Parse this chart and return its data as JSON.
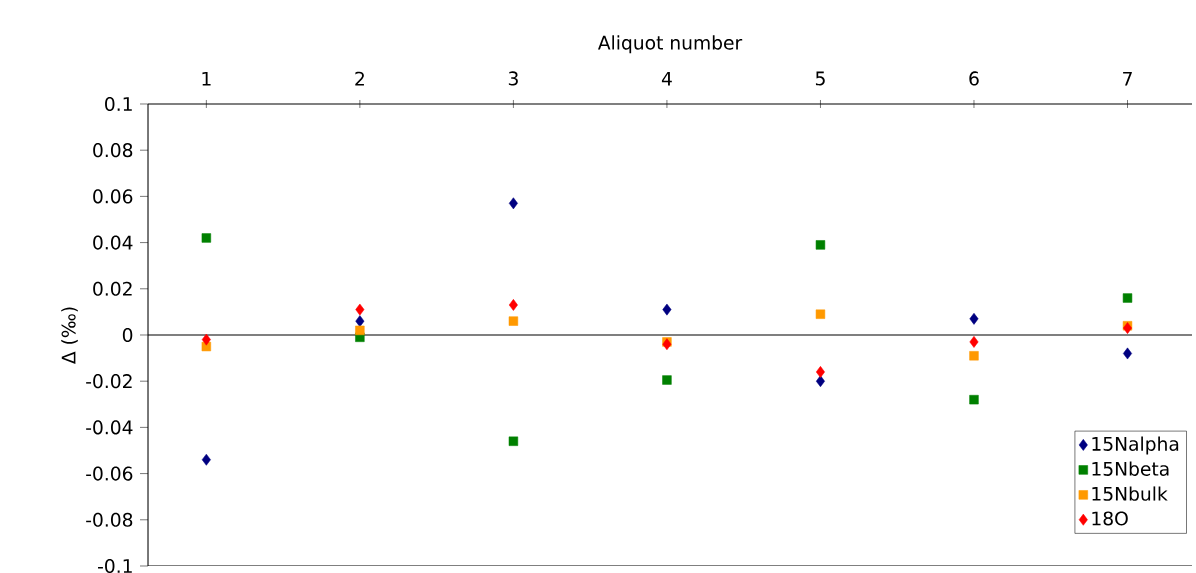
{
  "chart_data": {
    "type": "scatter",
    "xlabel": "Aliquot number",
    "ylabel": "Δ (‰)",
    "categories": [
      "1",
      "2",
      "3",
      "4",
      "5",
      "6",
      "7"
    ],
    "series": [
      {
        "name": "15Nalpha",
        "color": "#000080",
        "marker": "diamond",
        "values": [
          -0.054,
          0.006,
          0.057,
          0.011,
          -0.02,
          0.007,
          -0.008
        ]
      },
      {
        "name": "15Nbeta",
        "color": "#008000",
        "marker": "square",
        "values": [
          0.042,
          -0.001,
          -0.046,
          -0.0195,
          0.039,
          -0.028,
          0.016
        ]
      },
      {
        "name": "15Nbulk",
        "color": "#ff9900",
        "marker": "square",
        "values": [
          -0.005,
          0.002,
          0.006,
          -0.003,
          0.009,
          -0.009,
          0.004
        ]
      },
      {
        "name": "18O",
        "color": "#ff0000",
        "marker": "diamond",
        "values": [
          -0.002,
          0.011,
          0.013,
          -0.004,
          -0.016,
          -0.003,
          0.003
        ]
      }
    ],
    "ylim": [
      -0.1,
      0.1
    ],
    "yticks": [
      0.1,
      0.08,
      0.06,
      0.04,
      0.02,
      0,
      -0.02,
      -0.04,
      -0.06,
      -0.08,
      -0.1
    ],
    "ref_lines": [
      {
        "axis": "y",
        "value": 0,
        "color": "#000000"
      }
    ],
    "legend": "bottom right"
  }
}
